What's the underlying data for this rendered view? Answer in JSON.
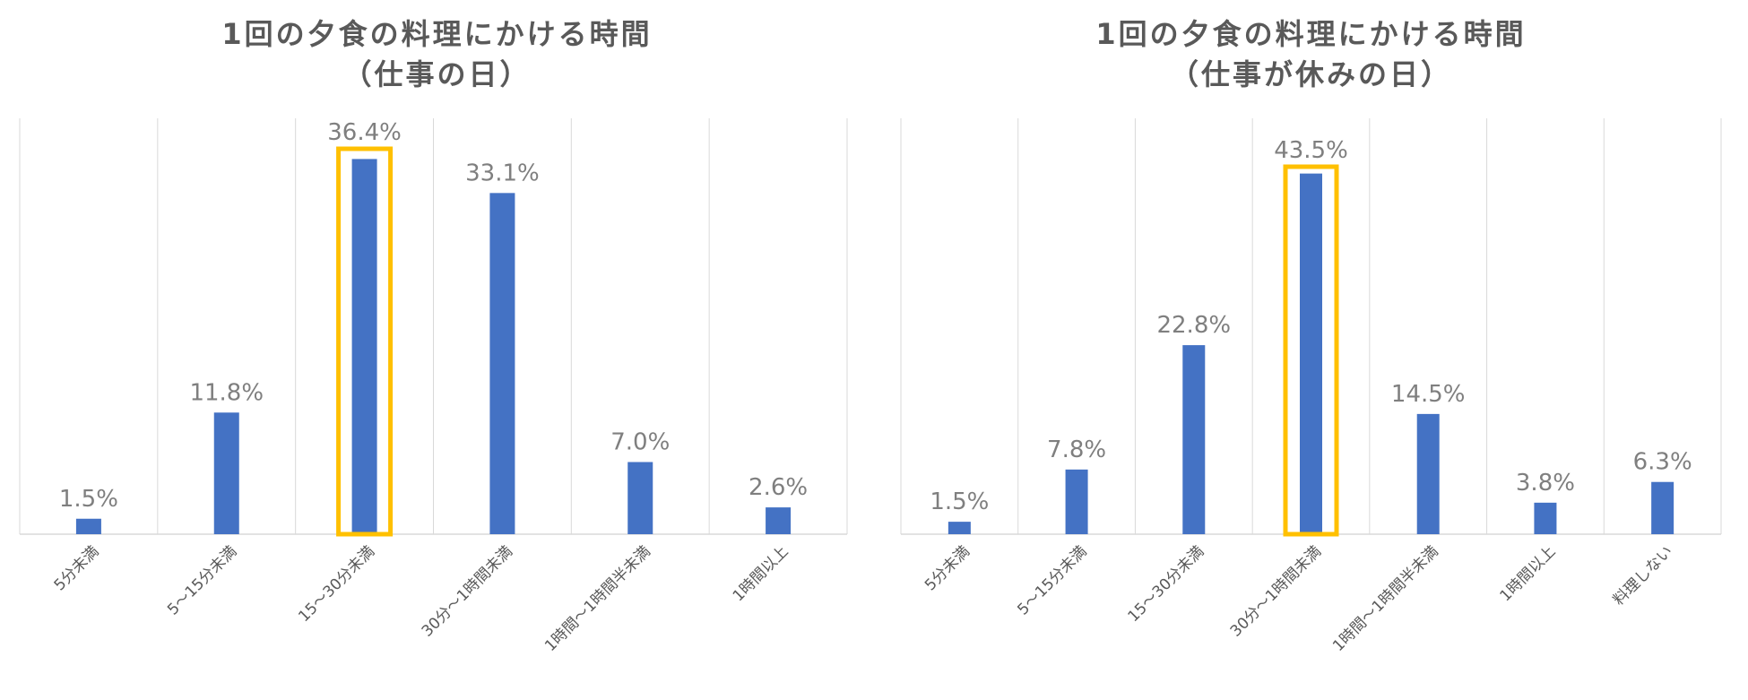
{
  "chart_data": [
    {
      "type": "bar",
      "title_line1": "1回の夕食の料理にかける時間",
      "title_line2": "（仕事の日）",
      "xlabel": "",
      "ylabel": "",
      "ylim": [
        0,
        40
      ],
      "grid": "vertical separators",
      "categories": [
        "5分未満",
        "5～15分未満",
        "15～30分未満",
        "30分～1時間未満",
        "1時間～1時間半未満",
        "1時間以上"
      ],
      "values": [
        1.5,
        11.8,
        36.4,
        33.1,
        7.0,
        2.6
      ],
      "labels": [
        "1.5%",
        "11.8%",
        "36.4%",
        "33.1%",
        "7.0%",
        "2.6%"
      ],
      "highlight_index": 2,
      "bar_color": "#4472c4",
      "highlight_color": "#ffc000"
    },
    {
      "type": "bar",
      "title_line1": "1回の夕食の料理にかける時間",
      "title_line2": "（仕事が休みの日）",
      "xlabel": "",
      "ylabel": "",
      "ylim": [
        0,
        48
      ],
      "grid": "vertical separators",
      "categories": [
        "5分未満",
        "5～15分未満",
        "15～30分未満",
        "30分～1時間未満",
        "1時間～1時間半未満",
        "1時間以上",
        "料理しない"
      ],
      "values": [
        1.5,
        7.8,
        22.8,
        43.5,
        14.5,
        3.8,
        6.3
      ],
      "labels": [
        "1.5%",
        "7.8%",
        "22.8%",
        "43.5%",
        "14.5%",
        "3.8%",
        "6.3%"
      ],
      "highlight_index": 3,
      "bar_color": "#4472c4",
      "highlight_color": "#ffc000"
    }
  ]
}
